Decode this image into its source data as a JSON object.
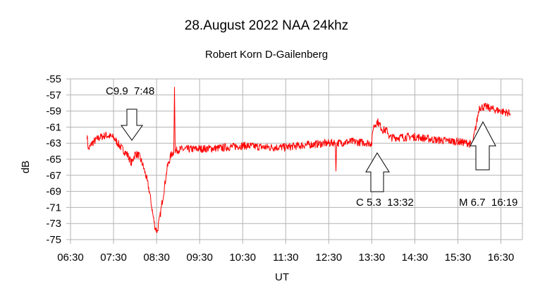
{
  "chart_data": {
    "type": "line",
    "title": "28.August 2022 NAA 24khz",
    "subtitle": "Robert Korn D-Gailenberg",
    "xlabel": "UT",
    "ylabel": "dB",
    "xlim": [
      "06:30",
      "17:00"
    ],
    "ylim": [
      -75,
      -55
    ],
    "grid": true,
    "x_ticks": [
      "06:30",
      "07:30",
      "08:30",
      "09:30",
      "10:30",
      "11:30",
      "12:30",
      "13:30",
      "14:30",
      "15:30",
      "16:30"
    ],
    "y_ticks": [
      "-55",
      "-57",
      "-59",
      "-61",
      "-63",
      "-65",
      "-67",
      "-69",
      "-71",
      "-73",
      "-75"
    ],
    "series_color": "#ff0000",
    "series": [
      {
        "x": [
          "06:53",
          "06:55",
          "07:00",
          "07:10",
          "07:20",
          "07:30",
          "07:40",
          "07:50",
          "07:55",
          "08:00",
          "08:05",
          "08:10",
          "08:15",
          "08:20",
          "08:25",
          "08:28",
          "08:31",
          "08:35",
          "08:40",
          "08:45",
          "08:50",
          "08:54",
          "08:55",
          "08:56",
          "09:00",
          "09:30",
          "10:00",
          "10:30",
          "11:00",
          "11:30",
          "12:00",
          "12:30",
          "12:39",
          "12:40",
          "12:41",
          "13:00",
          "13:30",
          "13:32",
          "13:38",
          "13:45",
          "13:52",
          "13:55",
          "14:00",
          "14:30",
          "15:00",
          "15:30",
          "15:45",
          "15:50",
          "15:55",
          "16:00",
          "16:10",
          "16:20",
          "16:30",
          "16:43"
        ],
        "y": [
          -62,
          -63.8,
          -63,
          -62.3,
          -62,
          -62.3,
          -63.5,
          -64.5,
          -65.5,
          -64.3,
          -64.5,
          -65.5,
          -67,
          -69,
          -72,
          -73.5,
          -74,
          -72,
          -69,
          -66,
          -64.5,
          -64,
          -56,
          -64,
          -63.8,
          -63.7,
          -63.6,
          -63.3,
          -63.5,
          -63.5,
          -63.2,
          -63,
          -62.9,
          -66.5,
          -63,
          -62.8,
          -63,
          -61,
          -60.3,
          -61.3,
          -61.5,
          -62.3,
          -62.3,
          -62.2,
          -62.6,
          -62.8,
          -63,
          -63.3,
          -61,
          -58.5,
          -58.5,
          -58.8,
          -59,
          -59.3
        ]
      }
    ],
    "annotations": [
      {
        "text": "C9.9  7:48",
        "arrow": "down"
      },
      {
        "text": "C 5.3  13:32",
        "arrow": "up"
      },
      {
        "text": "M 6.7  16:19",
        "arrow": "up"
      }
    ]
  }
}
